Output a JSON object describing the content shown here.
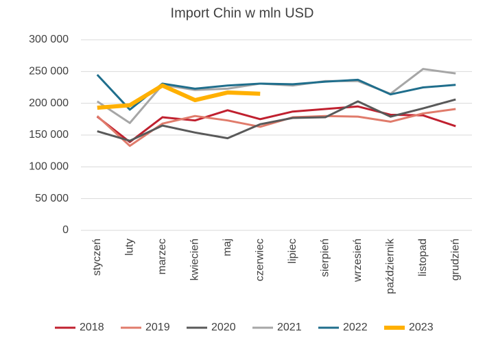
{
  "chart_data": {
    "type": "line",
    "title": "Import Chin w mln USD",
    "categories": [
      "styczeń",
      "luty",
      "marzec",
      "kwiecień",
      "maj",
      "czerwiec",
      "lipiec",
      "sierpień",
      "wrzesień",
      "październik",
      "listopad",
      "grudzień"
    ],
    "series": [
      {
        "name": "2018",
        "color": "#c0202f",
        "width": 3,
        "values": [
          179000,
          139000,
          178000,
          173000,
          189000,
          175000,
          187000,
          191000,
          195000,
          182000,
          181000,
          164000
        ]
      },
      {
        "name": "2019",
        "color": "#e07b6b",
        "width": 3,
        "values": [
          180000,
          133000,
          168000,
          180000,
          173000,
          163000,
          178000,
          180000,
          179000,
          171000,
          184000,
          191000
        ]
      },
      {
        "name": "2020",
        "color": "#595959",
        "width": 3,
        "values": [
          156000,
          141000,
          165000,
          154000,
          145000,
          167000,
          177000,
          178000,
          203000,
          179000,
          192000,
          206000
        ]
      },
      {
        "name": "2021",
        "color": "#a6a6a6",
        "width": 3,
        "values": [
          203000,
          169000,
          229000,
          221000,
          223000,
          231000,
          228000,
          235000,
          235000,
          215000,
          254000,
          247000
        ]
      },
      {
        "name": "2022",
        "color": "#1f6e8c",
        "width": 3,
        "values": [
          245000,
          190000,
          231000,
          223000,
          228000,
          231000,
          230000,
          234000,
          237000,
          214000,
          225000,
          229000
        ]
      },
      {
        "name": "2023",
        "color": "#ffb000",
        "width": 6,
        "values": [
          193000,
          197000,
          228000,
          205000,
          217000,
          215000,
          null,
          null,
          null,
          null,
          null,
          null
        ]
      }
    ],
    "ylim": [
      0,
      300000
    ],
    "yticks": [
      0,
      {
        "value": 50000,
        "label": "50 000"
      },
      {
        "value": 100000,
        "label": "100 000"
      },
      {
        "value": 150000,
        "label": "150 000"
      },
      {
        "value": 200000,
        "label": "200 000"
      },
      {
        "value": 250000,
        "label": "250 000"
      },
      {
        "value": 300000,
        "label": "300 000"
      }
    ],
    "grid": true,
    "legend": "bottom"
  }
}
